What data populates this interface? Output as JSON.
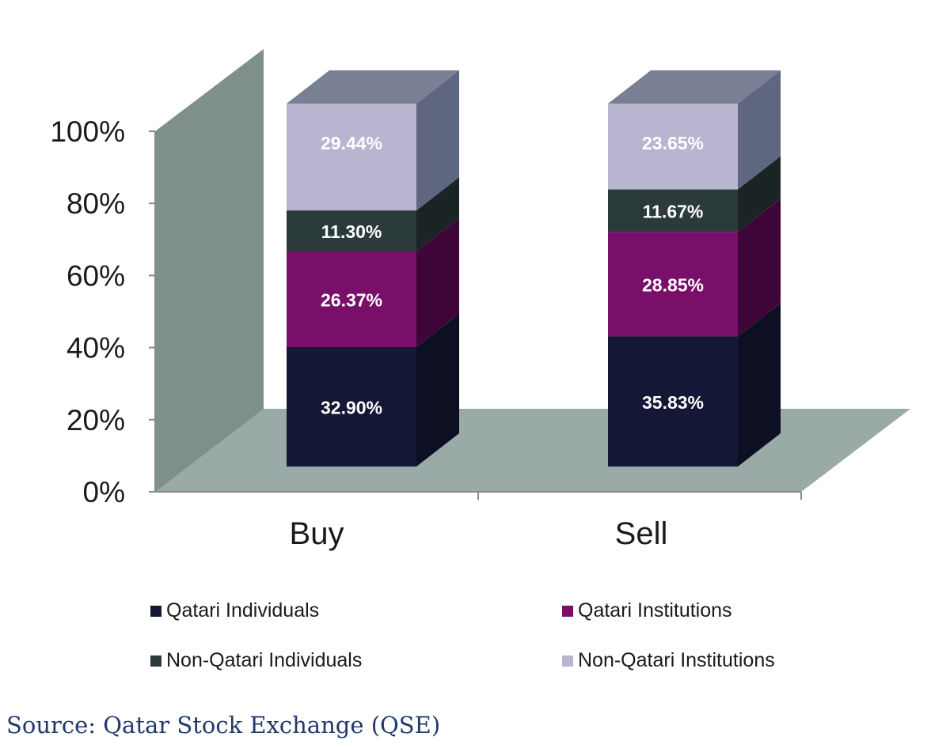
{
  "chart_data": {
    "type": "bar",
    "stacked": true,
    "three_d": true,
    "categories": [
      "Buy",
      "Sell"
    ],
    "series": [
      {
        "name": "Qatari Individuals",
        "values": [
          32.9,
          35.83
        ],
        "labels": [
          "32.90%",
          "35.83%"
        ],
        "color": "#141736",
        "side_color": "#0d0f22",
        "top_color": "#20244a"
      },
      {
        "name": "Qatari Institutions",
        "values": [
          26.37,
          28.85
        ],
        "labels": [
          "26.37%",
          "28.85%"
        ],
        "color": "#7a0f6a",
        "side_color": "#3e0638",
        "top_color": "#8c1a7c"
      },
      {
        "name": "Non-Qatari Individuals",
        "values": [
          11.3,
          11.67
        ],
        "labels": [
          "11.30%",
          "11.67%"
        ],
        "color": "#2b3a3a",
        "side_color": "#1b2424",
        "top_color": "#3a4b4b"
      },
      {
        "name": "Non-Qatari Institutions",
        "values": [
          29.44,
          23.65
        ],
        "labels": [
          "29.44%",
          "23.65%"
        ],
        "color": "#b9b4d0",
        "side_color": "#5f6680",
        "top_color": "#7a8093"
      }
    ],
    "y_ticks": [
      "0%",
      "20%",
      "40%",
      "60%",
      "80%",
      "100%"
    ],
    "ylim": [
      0,
      100
    ],
    "legend_position": "bottom",
    "wall_color": "#7e8f8c",
    "floor_color": "#9aaaa6"
  },
  "legend": {
    "items": [
      {
        "label": "Qatari Individuals",
        "color": "#141736"
      },
      {
        "label": "Qatari Institutions",
        "color": "#7a0f6a"
      },
      {
        "label": "Non-Qatari Individuals",
        "color": "#2b3a3a"
      },
      {
        "label": "Non-Qatari Institutions",
        "color": "#b9b4d0"
      }
    ]
  },
  "source": "Source: Qatar Stock Exchange (QSE)"
}
